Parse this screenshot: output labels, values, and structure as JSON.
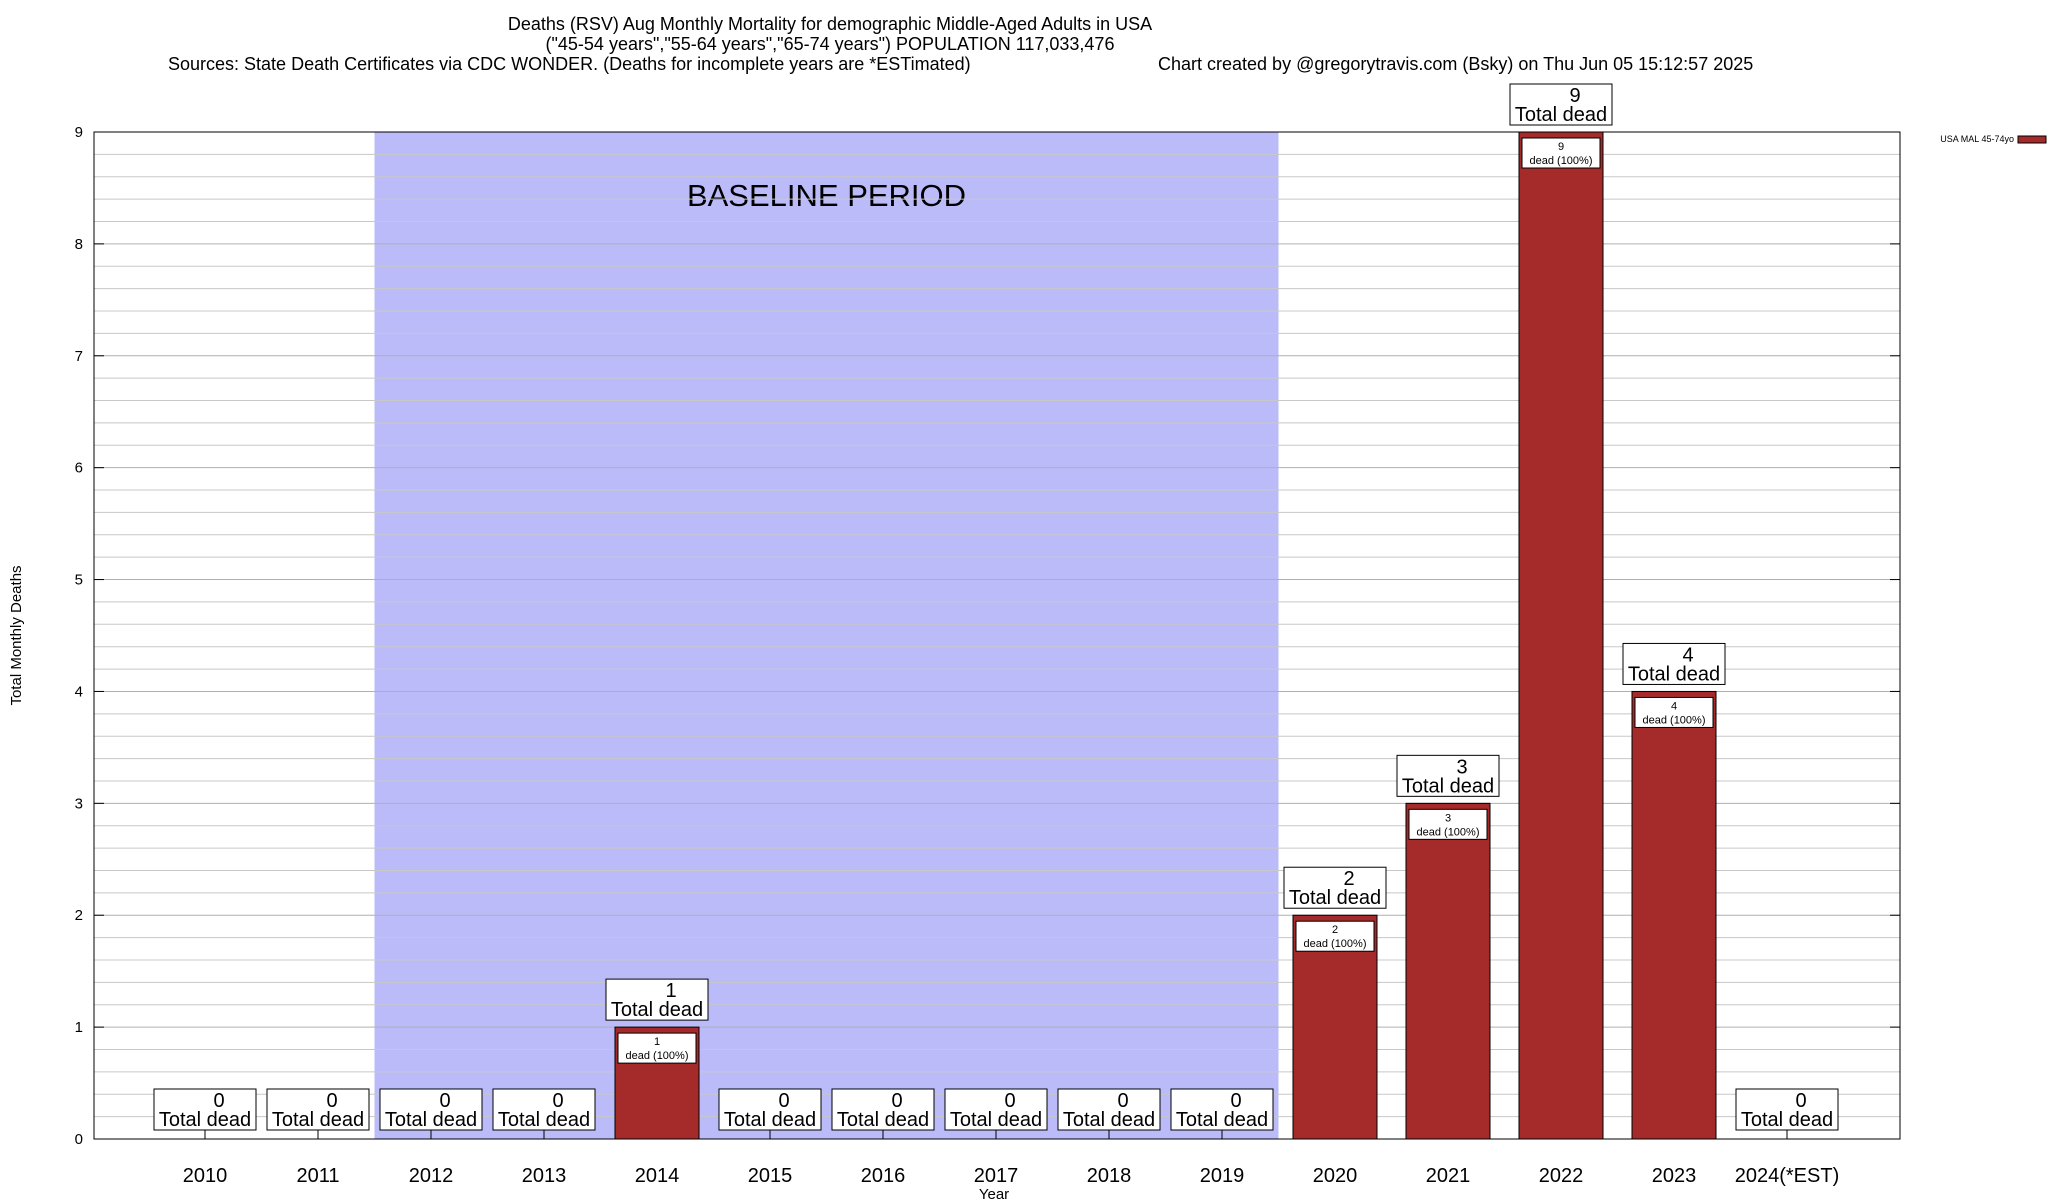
{
  "header": {
    "title_line1": "Deaths (RSV) Aug Monthly Mortality for demographic Middle-Aged Adults in USA",
    "title_line2": "(\"45-54 years\",\"55-64 years\",\"65-74 years\") POPULATION 117,033,476",
    "sources": "Sources: State Death Certificates via CDC WONDER. (Deaths for incomplete years are *ESTimated)",
    "credit": "Chart created by @gregorytravis.com (Bsky) on Thu Jun 05 15:12:57 2025"
  },
  "chart_data": {
    "type": "bar",
    "title": "Deaths (RSV) Aug Monthly Mortality for demographic Middle-Aged Adults in USA",
    "xlabel": "Year",
    "ylabel": "Total Monthly Deaths",
    "ylim": [
      0,
      9
    ],
    "y_ticks": [
      0,
      1,
      2,
      3,
      4,
      5,
      6,
      7,
      8,
      9
    ],
    "categories": [
      "2010",
      "2011",
      "2012",
      "2013",
      "2014",
      "2015",
      "2016",
      "2017",
      "2018",
      "2019",
      "2020",
      "2021",
      "2022",
      "2023",
      "2024(*EST)"
    ],
    "series": [
      {
        "name": "USA MAL 45-74yo",
        "color": "#a52a2a",
        "values": [
          0,
          0,
          0,
          0,
          1,
          0,
          0,
          0,
          0,
          0,
          2,
          3,
          9,
          4,
          0
        ]
      }
    ],
    "total_label_suffix": "Total dead",
    "inner_label_suffix": "dead (100%)",
    "baseline_region": {
      "label": "BASELINE PERIOD",
      "from": "2012",
      "to": "2019",
      "color": "#bbbbfa"
    },
    "grid": true,
    "legend_position": "top-right"
  }
}
